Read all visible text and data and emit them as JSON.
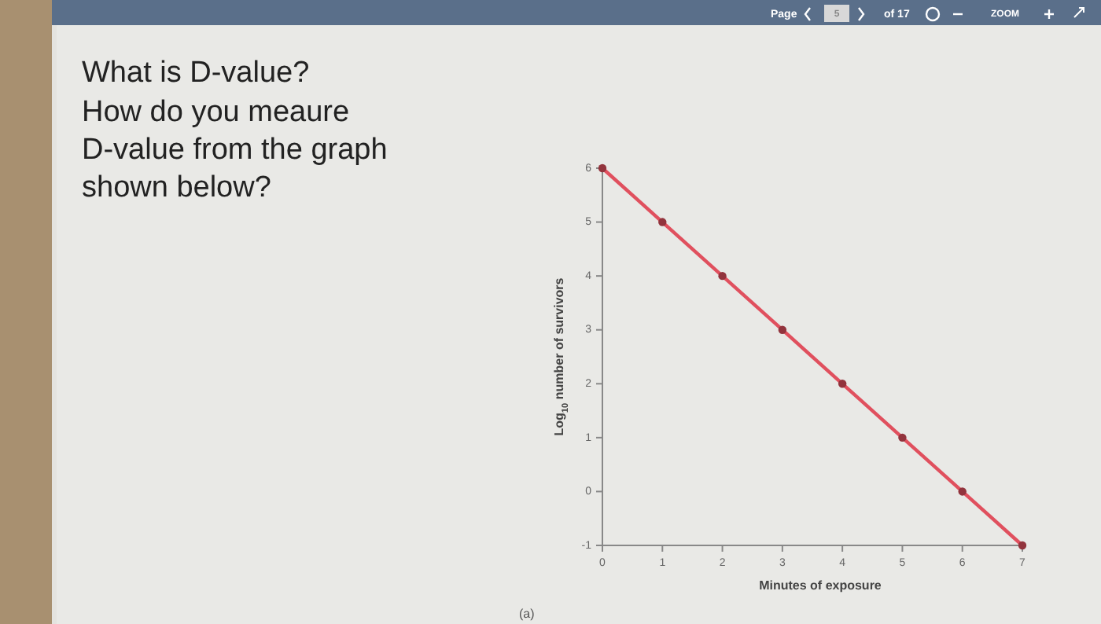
{
  "chart_data": {
    "type": "line",
    "title": "What is D-value?",
    "subtitle": "How do you meaure D-value from the graph shown below?",
    "xlabel": "Minutes of exposure",
    "ylabel": "Log$_{10}$ number of survivors",
    "x": [
      0,
      1,
      2,
      3,
      4,
      5,
      6,
      7
    ],
    "series": [
      {
        "color": "#e0505e",
        "values": [
          6,
          5,
          4,
          3,
          2,
          1,
          0,
          -1
        ]
      }
    ],
    "xlim": [
      0,
      7
    ],
    "ylim": [
      -1,
      6
    ],
    "xticks": [
      0,
      1,
      2,
      3,
      4,
      5,
      6,
      7
    ],
    "yticks": [
      -1,
      0,
      1,
      2,
      3,
      4,
      5,
      6
    ],
    "marker": "circle",
    "line_style": "solid",
    "grid": false,
    "annotations": [
      "Page",
      "5",
      "of 17",
      "ZOOM",
      "(a)"
    ]
  }
}
